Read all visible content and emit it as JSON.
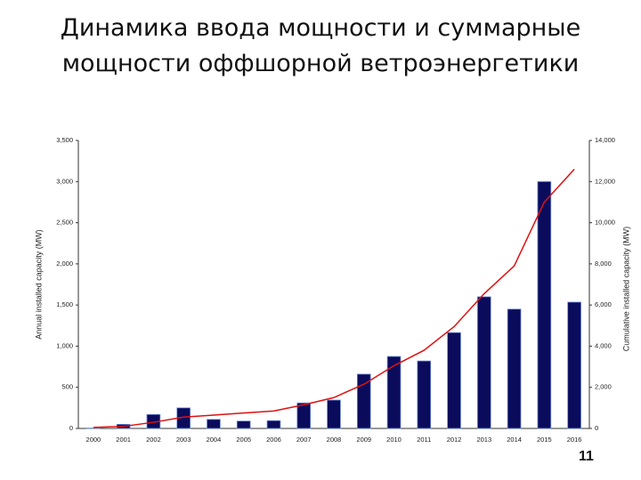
{
  "chart_data": {
    "type": "bar-line",
    "title": "Динамика ввода мощности и суммарные мощности оффшорной ветроэнергетики",
    "y_label": "Annual installed capacity (MW)",
    "y2_label": "Cumulative installed capacity (MW)",
    "categories": [
      "2000",
      "2001",
      "2002",
      "2003",
      "2004",
      "2005",
      "2006",
      "2007",
      "2008",
      "2009",
      "2010",
      "2011",
      "2012",
      "2013",
      "2014",
      "2015",
      "2016"
    ],
    "series": [
      {
        "type": "bar",
        "color": "#0b0b5c",
        "axis": "y",
        "values": [
          5,
          50,
          170,
          250,
          110,
          90,
          95,
          310,
          345,
          660,
          875,
          820,
          1165,
          1600,
          1450,
          3000,
          1535
        ]
      },
      {
        "type": "line",
        "color": "#e01010",
        "axis": "y2",
        "values": [
          50,
          100,
          300,
          550,
          650,
          750,
          850,
          1150,
          1500,
          2150,
          3050,
          3800,
          4950,
          6550,
          7900,
          11000,
          12600
        ]
      }
    ],
    "ylim": [
      0,
      3500
    ],
    "yticks": [
      0,
      500,
      {
        "value": 1000,
        "label": "1,000"
      },
      {
        "value": 1500,
        "label": "1,500"
      },
      {
        "value": 2000,
        "label": "2,000"
      },
      {
        "value": 2500,
        "label": "2,500"
      },
      {
        "value": 3000,
        "label": "3,000"
      },
      {
        "value": 3500,
        "label": "3,500"
      }
    ],
    "y2lim": [
      0,
      14000
    ],
    "y2ticks": [
      0,
      {
        "value": 2000,
        "label": "2,000"
      },
      {
        "value": 4000,
        "label": "4,000"
      },
      {
        "value": 6000,
        "label": "6,000"
      },
      {
        "value": 8000,
        "label": "8,000"
      },
      {
        "value": 10000,
        "label": "10,000"
      },
      {
        "value": 12000,
        "label": "12,000"
      },
      {
        "value": 14000,
        "label": "14,000"
      }
    ],
    "grid": false
  },
  "page_number": "11"
}
